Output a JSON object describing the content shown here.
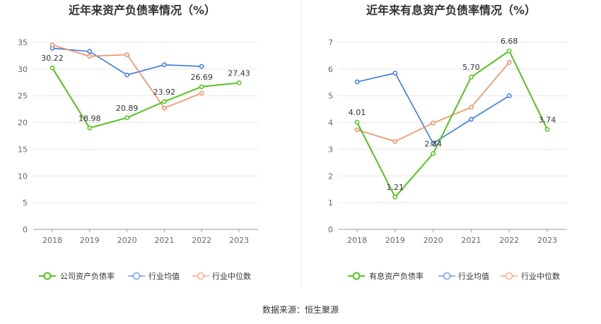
{
  "source_label": "数据来源：恒生聚源",
  "colors": {
    "company": "#52c41a",
    "average": "#3b78e7",
    "median": "#f28c5e",
    "grid": "#e6e6e6",
    "axis": "#999999",
    "divider": "#eeeeee"
  },
  "chart_data": [
    {
      "type": "line",
      "title": "近年来资产负债率情况（%）",
      "categories": [
        "2018",
        "2019",
        "2020",
        "2021",
        "2022",
        "2023"
      ],
      "ylim": [
        0,
        35
      ],
      "yticks": [
        0,
        5,
        10,
        15,
        20,
        25,
        30,
        35
      ],
      "grid": true,
      "legend_position": "bottom",
      "series": [
        {
          "name": "公司资产负债率",
          "key": "company",
          "labeled": true,
          "values": [
            30.22,
            18.98,
            20.89,
            23.92,
            26.69,
            27.43
          ],
          "labels": [
            "30.22",
            "18.98",
            "20.89",
            "23.92",
            "26.69",
            "27.43"
          ]
        },
        {
          "name": "行业均值",
          "key": "average",
          "labeled": false,
          "values": [
            33.9,
            33.3,
            28.9,
            30.8,
            30.5,
            null
          ]
        },
        {
          "name": "行业中位数",
          "key": "median",
          "labeled": false,
          "values": [
            34.5,
            32.4,
            32.7,
            22.7,
            25.5,
            null
          ]
        }
      ]
    },
    {
      "type": "line",
      "title": "近年来有息资产负债率情况（%）",
      "categories": [
        "2018",
        "2019",
        "2020",
        "2021",
        "2022",
        "2023"
      ],
      "ylim": [
        0,
        7
      ],
      "yticks": [
        0,
        1,
        2,
        3,
        4,
        5,
        6,
        7
      ],
      "grid": true,
      "legend_position": "bottom",
      "series": [
        {
          "name": "有息资产负债率",
          "key": "company",
          "labeled": true,
          "values": [
            4.01,
            1.21,
            2.84,
            5.7,
            6.68,
            3.74
          ],
          "labels": [
            "4.01",
            "1.21",
            "2.84",
            "5.70",
            "6.68",
            "3.74"
          ]
        },
        {
          "name": "行业均值",
          "key": "average",
          "labeled": false,
          "values": [
            5.52,
            5.85,
            3.22,
            4.12,
            5.0,
            null
          ]
        },
        {
          "name": "行业中位数",
          "key": "median",
          "labeled": false,
          "values": [
            3.73,
            3.29,
            3.98,
            4.57,
            6.25,
            null
          ]
        }
      ]
    }
  ]
}
